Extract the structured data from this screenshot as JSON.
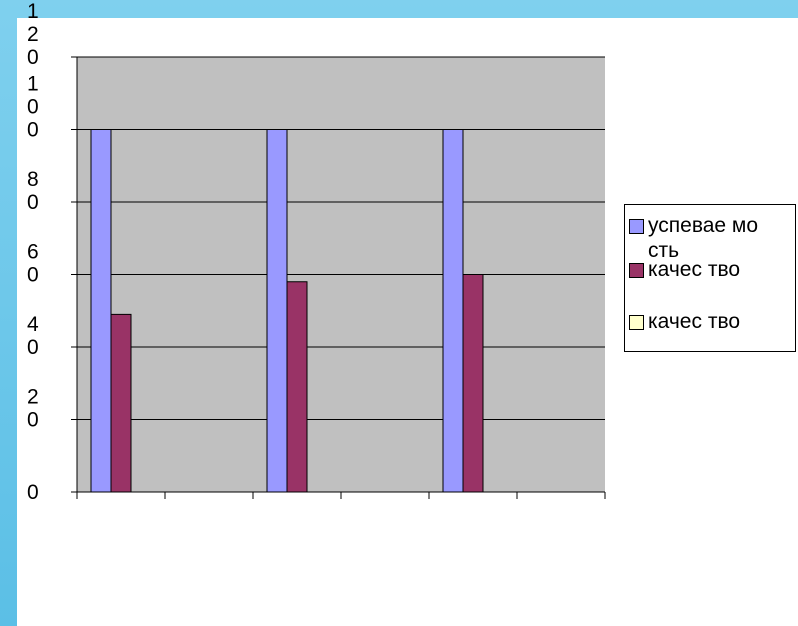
{
  "colors": {
    "border_cyan": "#5bbfe6",
    "plot_area": "#c0c0c0",
    "gridline": "#000000",
    "series_1": "#9999ff",
    "series_2": "#993366",
    "series_3": "#ffffcc"
  },
  "chart_data": {
    "type": "bar",
    "categories": [
      "",
      "",
      ""
    ],
    "series": [
      {
        "name": "успеваемость",
        "values": [
          100,
          100,
          100
        ],
        "color": "#9999ff"
      },
      {
        "name": "качество",
        "values": [
          49,
          58,
          60
        ],
        "color": "#993366"
      },
      {
        "name": "качество",
        "values": [
          0,
          0,
          0
        ],
        "color": "#ffffcc"
      }
    ],
    "ylim": [
      0,
      120
    ],
    "yticks": [
      0,
      20,
      40,
      60,
      80,
      100,
      120
    ],
    "ytick_labels": [
      "0",
      "2\n0",
      "4\n0",
      "6\n0",
      "8\n0",
      "1\n0\n0",
      "1\n2\n0"
    ],
    "grid": true,
    "legend_position": "right",
    "title": "",
    "xlabel": "",
    "ylabel": ""
  },
  "legend": {
    "items": [
      {
        "label": "успевае мость",
        "color": "#9999ff"
      },
      {
        "label": "качес тво",
        "color": "#993366"
      },
      {
        "label": "качес тво",
        "color": "#ffffcc"
      }
    ]
  }
}
